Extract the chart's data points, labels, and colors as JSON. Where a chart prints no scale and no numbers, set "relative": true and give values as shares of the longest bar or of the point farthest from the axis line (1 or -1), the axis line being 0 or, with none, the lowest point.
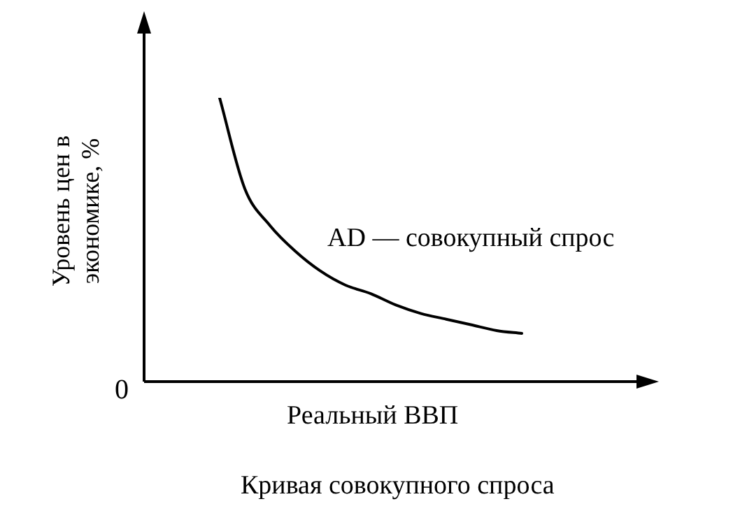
{
  "chart_data": {
    "type": "line",
    "relative": true,
    "xlabel": "Реальный ВВП",
    "ylabel": "Уровень цен в экономике, %",
    "categories": [
      null,
      null,
      null,
      null,
      null,
      null,
      null,
      null,
      null,
      null,
      null,
      null,
      null,
      null,
      null,
      null,
      null,
      null,
      null,
      null,
      null
    ],
    "series": [
      {
        "color": "#000000",
        "values": [
          null,
          null,
          null,
          1,
          0.68,
          0.55,
          0.46,
          0.39,
          0.34,
          0.31,
          0.27,
          0.24,
          0.22,
          0.2,
          0.18,
          0.17,
          null,
          null,
          null,
          null,
          null
        ]
      }
    ],
    "annotations": [
      "0",
      "AD — совокупный спрос",
      "Кривая совокупного спроса"
    ],
    "legend": false,
    "marker": "none",
    "line_style": "solid"
  }
}
